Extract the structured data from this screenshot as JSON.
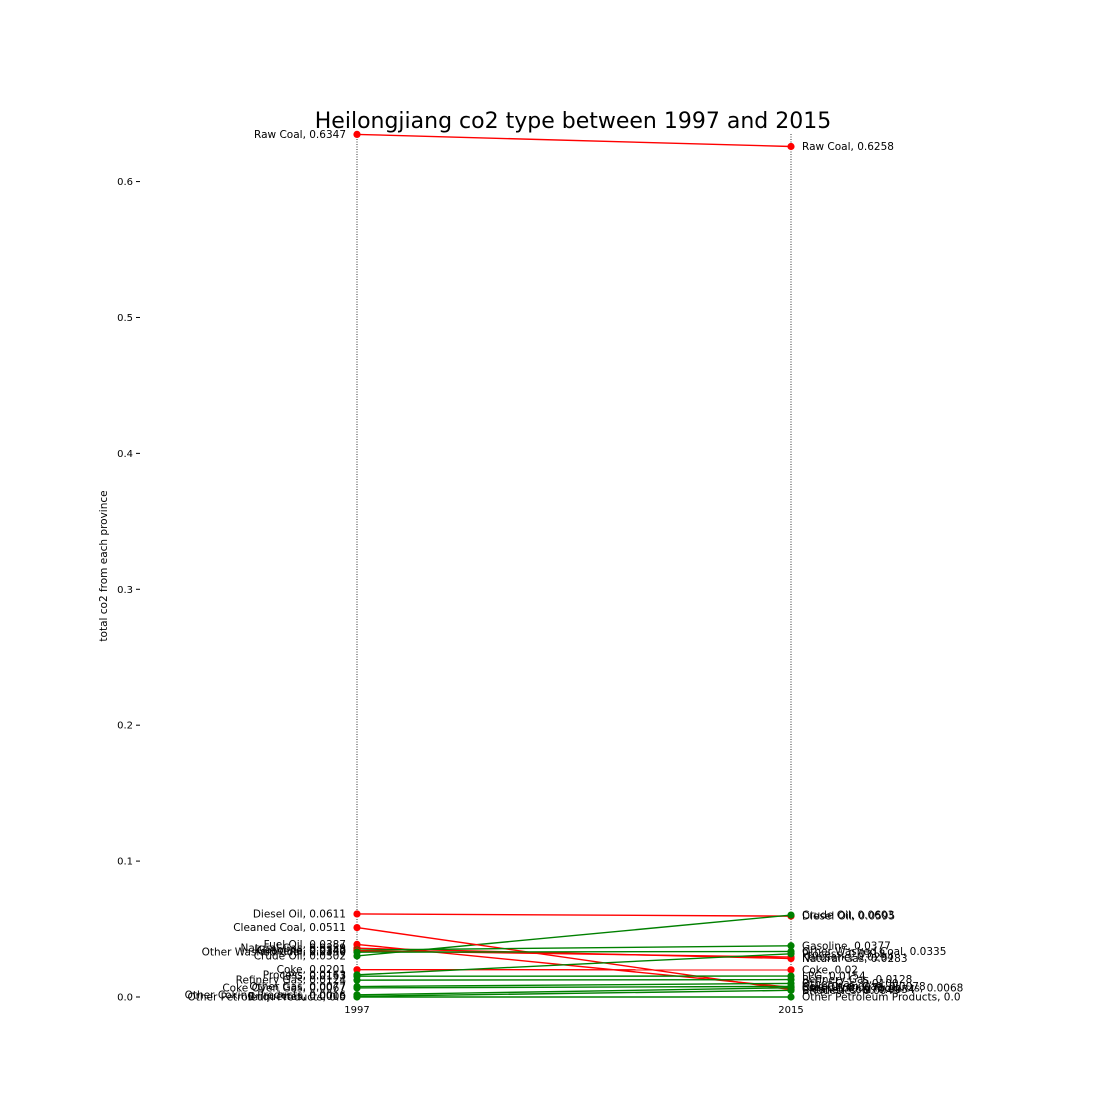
{
  "chart_data": {
    "type": "line",
    "title": "Heilongjiang co2 type between 1997 and 2015",
    "ylabel": "total co2 from each province",
    "xlabel": "",
    "x": [
      "1997",
      "2015"
    ],
    "ylim": [
      0,
      0.635
    ],
    "yticks": [
      0.0,
      0.1,
      0.2,
      0.3,
      0.4,
      0.5,
      0.6
    ],
    "ytick_labels": [
      "0.0",
      "0.1",
      "0.2",
      "0.3",
      "0.4",
      "0.5",
      "0.6"
    ],
    "grid": false,
    "colors": {
      "decrease": "#ff0000",
      "increase": "#008000"
    },
    "series": [
      {
        "name": "Raw Coal",
        "values": [
          0.6347,
          0.6258
        ],
        "labels": [
          "Raw Coal, 0.6347",
          "Raw Coal, 0.6258"
        ]
      },
      {
        "name": "Diesel Oil",
        "values": [
          0.0611,
          0.0595
        ],
        "labels": [
          "Diesel Oil, 0.0611",
          "Diesel Oil, 0.0595"
        ]
      },
      {
        "name": "Crude Oil",
        "values": [
          0.0302,
          0.0603
        ],
        "labels": [
          "Crude Oil, 0.0302",
          "Crude Oil, 0.0603"
        ]
      },
      {
        "name": "Cleaned Coal",
        "values": [
          0.0511,
          0.0054
        ],
        "labels": [
          "Cleaned Coal, 0.0511",
          "Cleaned Coal, 0.0054"
        ]
      },
      {
        "name": "Fuel Oil",
        "values": [
          0.0387,
          0.0071
        ],
        "labels": [
          "Fuel Oil, 0.0387",
          "Fuel Oil, 0.0071"
        ]
      },
      {
        "name": "Natural Gas",
        "values": [
          0.0359,
          0.0283
        ],
        "labels": [
          "Natural Gas, 0.0359",
          "Natural Gas, 0.0283"
        ]
      },
      {
        "name": "Gasoline",
        "values": [
          0.0345,
          0.0377
        ],
        "labels": [
          "Gasoline, 0.0345",
          "Gasoline, 0.0377"
        ]
      },
      {
        "name": "Kerosene",
        "values": [
          0.034,
          0.0294
        ],
        "labels": [
          "Kerosene, 0.0340",
          "Kerosene, 0.0294"
        ]
      },
      {
        "name": "Other Washed Coal",
        "values": [
          0.033,
          0.0335
        ],
        "labels": [
          "Other Washed Coal, 0.0330",
          "Other Washed Coal, 0.0335"
        ]
      },
      {
        "name": "Coke",
        "values": [
          0.0201,
          0.02
        ],
        "labels": [
          "Coke, 0.0201",
          "Coke, 0.02"
        ]
      },
      {
        "name": "LPG",
        "values": [
          0.0153,
          0.0154
        ],
        "labels": [
          "LPG, 0.0153",
          "LPG, 0.0154"
        ]
      },
      {
        "name": "Process",
        "values": [
          0.0163,
          0.0318
        ],
        "labels": [
          "Process, 0.0163",
          "Process, 0.0318"
        ]
      },
      {
        "name": "Refinery Gas",
        "values": [
          0.0124,
          0.0128
        ],
        "labels": [
          "Refinery Gas, 0.0124",
          "Refinery Gas, 0.0128"
        ]
      },
      {
        "name": "Other Gas",
        "values": [
          0.0077,
          0.01
        ],
        "labels": [
          "Other Gas, 0.0077",
          "Other Gas, 0.0100"
        ]
      },
      {
        "name": "Coke Oven Gas",
        "values": [
          0.0067,
          0.0078
        ],
        "labels": [
          "Coke Oven Gas, 0.0067",
          "Coke Oven Gas, 0.0078"
        ]
      },
      {
        "name": "Other Coking Products",
        "values": [
          0.0016,
          0.0068
        ],
        "labels": [
          "Other Coking Products, 0.0016",
          "Other Coking Products, 0.0068"
        ]
      },
      {
        "name": "Briquettes",
        "values": [
          0.0005,
          0.0049
        ],
        "labels": [
          "Briquettes, 0.0005",
          "Briquettes, 0.0049"
        ]
      },
      {
        "name": "Other Petroleum Products",
        "values": [
          0.0,
          0.0
        ],
        "labels": [
          "Other Petroleum Products, 0.0",
          "Other Petroleum Products, 0.0"
        ]
      }
    ]
  }
}
